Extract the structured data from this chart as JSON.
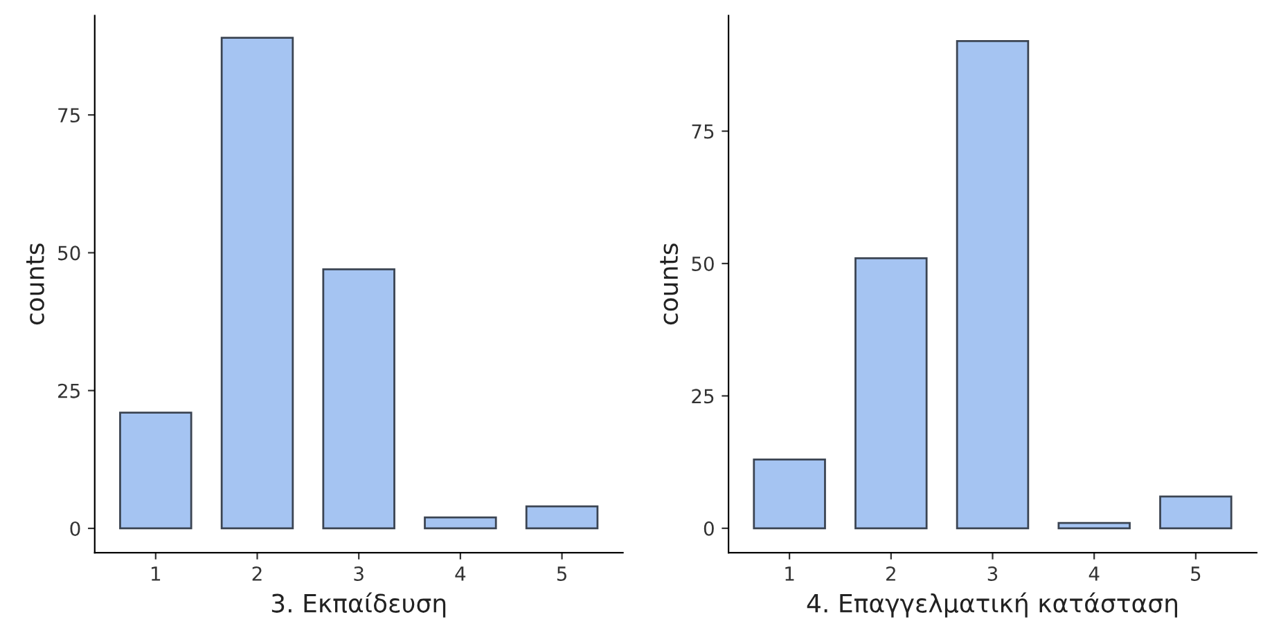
{
  "chart_data": [
    {
      "type": "bar",
      "xlabel": "3. Εκπαίδευση",
      "ylabel": "counts",
      "categories": [
        "1",
        "2",
        "3",
        "4",
        "5"
      ],
      "values": [
        21,
        89,
        47,
        2,
        4
      ],
      "color": "#a5c4f2",
      "ylim": [
        -4.4,
        93
      ],
      "yticks": [
        0,
        25,
        50,
        75
      ],
      "grid": false,
      "legend": false
    },
    {
      "type": "bar",
      "xlabel": "4. Επαγγελματική κατάσταση",
      "ylabel": "counts",
      "categories": [
        "1",
        "2",
        "3",
        "4",
        "5"
      ],
      "values": [
        13,
        51,
        92,
        1,
        6
      ],
      "color": "#a5c4f2",
      "ylim": [
        -4.6,
        96.8
      ],
      "yticks": [
        0,
        25,
        50,
        75
      ],
      "grid": false,
      "legend": false
    }
  ]
}
